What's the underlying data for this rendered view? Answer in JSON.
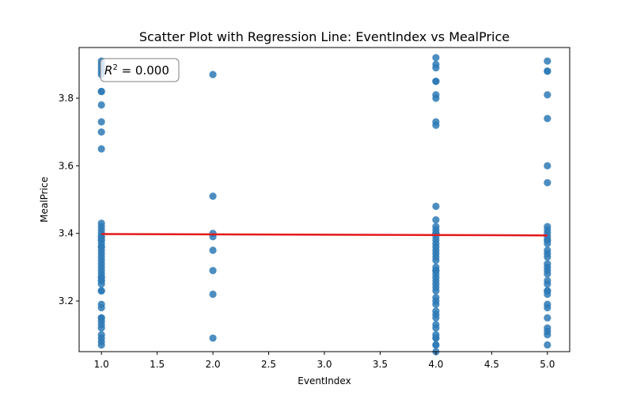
{
  "chart_data": {
    "type": "scatter",
    "title": "Scatter Plot with Regression Line: EventIndex vs MealPrice",
    "xlabel": "EventIndex",
    "ylabel": "MealPrice",
    "xlim": [
      0.8,
      5.2
    ],
    "ylim": [
      3.05,
      3.95
    ],
    "xticks": [
      1.0,
      1.5,
      2.0,
      2.5,
      3.0,
      3.5,
      4.0,
      4.5,
      5.0
    ],
    "yticks": [
      3.2,
      3.4,
      3.6,
      3.8
    ],
    "xtick_labels": [
      "1.0",
      "1.5",
      "2.0",
      "2.5",
      "3.0",
      "3.5",
      "4.0",
      "4.5",
      "5.0"
    ],
    "ytick_labels": [
      "3.2",
      "3.4",
      "3.6",
      "3.8"
    ],
    "annotation": {
      "r2_symbol": "R",
      "r2_value": " = 0.000"
    },
    "point_color": "#2e7ab6",
    "line_color": "#e31a1c",
    "regression": {
      "x": [
        1.0,
        5.0
      ],
      "y": [
        3.398,
        3.394
      ]
    },
    "series": [
      {
        "x": [
          1,
          1,
          1,
          1,
          1,
          1,
          1,
          1,
          1,
          1,
          1,
          1,
          1,
          1,
          1,
          1,
          1,
          1,
          1,
          1,
          1,
          1,
          1,
          1,
          1,
          1,
          1,
          1,
          1,
          1,
          1,
          1,
          1,
          1,
          1,
          1,
          1,
          1,
          1,
          1,
          1,
          1,
          1,
          1,
          1,
          1,
          1,
          1,
          2,
          2,
          2,
          2,
          2,
          2,
          2,
          2,
          4,
          4,
          4,
          4,
          4,
          4,
          4,
          4,
          4,
          4,
          4,
          4,
          4,
          4,
          4,
          4,
          4,
          4,
          4,
          4,
          4,
          4,
          4,
          4,
          4,
          4,
          4,
          4,
          4,
          4,
          4,
          4,
          4,
          4,
          4,
          4,
          4,
          4,
          4,
          4,
          4,
          4,
          4,
          4,
          4,
          4,
          5,
          5,
          5,
          5,
          5,
          5,
          5,
          5,
          5,
          5,
          5,
          5,
          5,
          5,
          5,
          5,
          5,
          5,
          5,
          5,
          5,
          5,
          5,
          5,
          5,
          5,
          5,
          5,
          5,
          5,
          5,
          5,
          5
        ],
        "y": [
          3.91,
          3.9,
          3.89,
          3.88,
          3.87,
          3.82,
          3.82,
          3.78,
          3.73,
          3.7,
          3.65,
          3.43,
          3.42,
          3.41,
          3.4,
          3.39,
          3.38,
          3.37,
          3.36,
          3.35,
          3.34,
          3.31,
          3.3,
          3.29,
          3.28,
          3.27,
          3.26,
          3.25,
          3.23,
          3.23,
          3.19,
          3.18,
          3.15,
          3.14,
          3.13,
          3.1,
          3.09,
          3.07,
          3.39,
          3.38,
          3.36,
          3.33,
          3.32,
          3.27,
          3.26,
          3.15,
          3.12,
          3.08,
          3.87,
          3.51,
          3.4,
          3.39,
          3.35,
          3.29,
          3.22,
          3.09,
          3.92,
          3.9,
          3.89,
          3.85,
          3.85,
          3.81,
          3.8,
          3.73,
          3.72,
          3.48,
          3.44,
          3.42,
          3.41,
          3.4,
          3.39,
          3.38,
          3.37,
          3.36,
          3.35,
          3.33,
          3.32,
          3.29,
          3.29,
          3.27,
          3.26,
          3.25,
          3.24,
          3.21,
          3.19,
          3.17,
          3.15,
          3.13,
          3.1,
          3.09,
          3.09,
          3.07,
          3.07,
          3.4,
          3.34,
          3.28,
          3.16,
          3.12,
          3.05,
          3.3,
          3.23,
          3.2,
          3.91,
          3.88,
          3.88,
          3.81,
          3.74,
          3.6,
          3.55,
          3.42,
          3.41,
          3.4,
          3.39,
          3.38,
          3.38,
          3.35,
          3.34,
          3.31,
          3.3,
          3.29,
          3.28,
          3.25,
          3.23,
          3.23,
          3.19,
          3.15,
          3.12,
          3.1,
          3.07,
          3.37,
          3.33,
          3.26,
          3.22,
          3.18,
          3.11
        ]
      }
    ]
  }
}
